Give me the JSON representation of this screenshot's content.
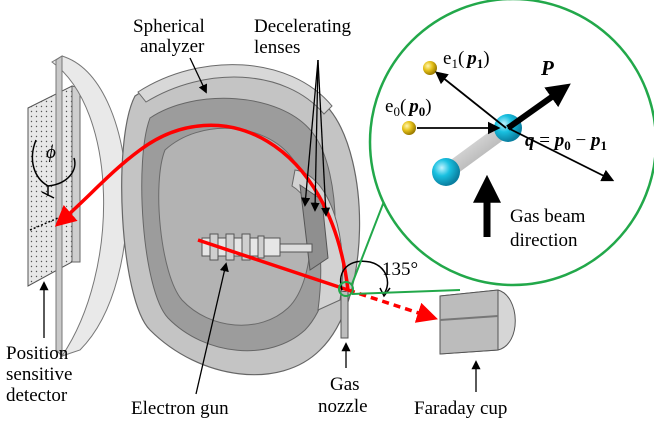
{
  "labels": {
    "spherical_analyzer": [
      "Spherical",
      "analyzer"
    ],
    "decelerating_lenses": [
      "Decelerating",
      "lenses"
    ],
    "phi": "ϕ",
    "angle": "135°",
    "position_sensitive_detector": [
      "Position",
      "sensitive",
      "detector"
    ],
    "electron_gun": "Electron gun",
    "gas_nozzle": [
      "Gas",
      "nozzle"
    ],
    "faraday_cup": "Faraday cup"
  },
  "inset": {
    "e1": {
      "base": "e",
      "sub": "1",
      "open": "(",
      "p": "p",
      "psub": "1",
      "close": ")"
    },
    "e0": {
      "base": "e",
      "sub": "0",
      "open": "(",
      "p": "p",
      "psub": "0",
      "close": ")"
    },
    "P": "P",
    "q_equation": {
      "q": "q",
      "eq": " = ",
      "p0": "p",
      "p0sub": "0",
      "minus": " − ",
      "p1": "p",
      "p1sub": "1"
    },
    "gas_beam_direction": [
      "Gas beam",
      "direction"
    ]
  },
  "colors": {
    "electron_path": "#ff0000",
    "inset_circle": "#22a84a",
    "molecule": "#19c0e0",
    "electron": "#e6c21a",
    "apparatus": "#b8b8b8"
  }
}
